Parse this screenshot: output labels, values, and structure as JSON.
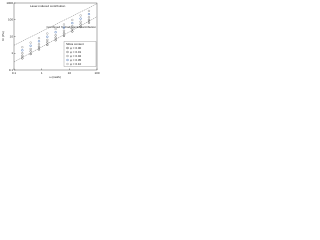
{
  "chart_data": {
    "type": "scatter",
    "x_label": "ω (rad/s)",
    "y_label": "G' (Pa)",
    "x": [
      0.2,
      0.4,
      0.8,
      1.6,
      3.2,
      6.4,
      12.8,
      25.6,
      51.2
    ],
    "xlim": [
      0.1,
      100
    ],
    "ylim": [
      0.1,
      1000
    ],
    "xticks": [
      0.1,
      1,
      10,
      100
    ],
    "yticks": [
      0.1,
      1,
      10,
      100,
      1000
    ],
    "log_x": true,
    "log_y": true,
    "legend_title": "Silica content",
    "legend_position": "lower right",
    "lines": [
      {
        "label": "Laser-induced contribution",
        "x": [
          0.1,
          100
        ],
        "y": [
          3,
          900
        ],
        "color": "#555555"
      },
      {
        "label": "Combined hydrodynamic contribution",
        "x": [
          0.1,
          100
        ],
        "y": [
          0.3,
          150
        ],
        "color": "#555555"
      }
    ],
    "series": [
      {
        "name": "φ = 0.00",
        "color": "#222222",
        "values": [
          0.5,
          0.9,
          1.7,
          3.2,
          6,
          11,
          20,
          37,
          68
        ]
      },
      {
        "name": "φ = 0.01",
        "color": "#444444",
        "values": [
          0.7,
          1.3,
          2.4,
          4.5,
          8.4,
          15.5,
          29,
          53,
          98
        ]
      },
      {
        "name": "φ = 0.02",
        "color": "#666666",
        "values": [
          1,
          1.8,
          3.4,
          6.3,
          11.8,
          22,
          41,
          76,
          140
        ]
      },
      {
        "name": "φ = 0.05",
        "color": "#2a5caa",
        "values": [
          1.5,
          2.8,
          5.2,
          9.7,
          18,
          34,
          63,
          117,
          218
        ]
      },
      {
        "name": "φ = 0.10",
        "color": "#888888",
        "values": [
          2.3,
          4.3,
          8,
          15,
          28,
          52,
          97,
          180,
          335
        ]
      }
    ]
  }
}
